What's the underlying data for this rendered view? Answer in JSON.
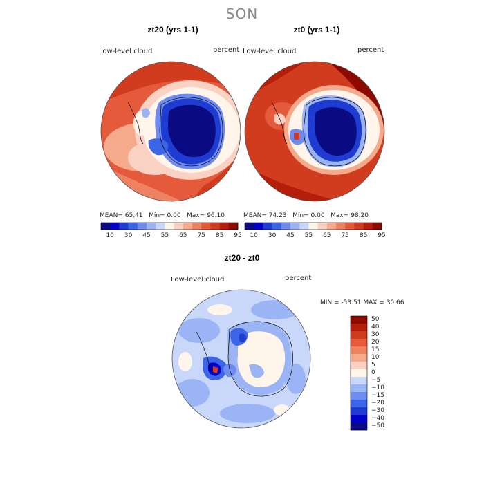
{
  "season": "SON",
  "panels": [
    {
      "title": "zt20 (yrs 1-1)",
      "variable": "Low-level cloud",
      "units": "percent",
      "stats": {
        "mean_label": "MEAN=",
        "mean": "65.41",
        "min_label": "Min=",
        "min": "0.00",
        "max_label": "Max=",
        "max": "96.10"
      }
    },
    {
      "title": "zt0 (yrs 1-1)",
      "variable": "Low-level cloud",
      "units": "percent",
      "stats": {
        "mean_label": "MEAN=",
        "mean": "74.23",
        "min_label": "Min=",
        "min": "0.00",
        "max_label": "Max=",
        "max": "98.20"
      }
    }
  ],
  "abs_colorbar": {
    "ticks": [
      "10",
      "30",
      "45",
      "55",
      "65",
      "75",
      "85",
      "95"
    ],
    "colors": [
      "#0a0a82",
      "#0000c8",
      "#1e3cd2",
      "#3c64e6",
      "#6e8cf0",
      "#9bb4f5",
      "#c8d7fa",
      "#fff5eb",
      "#fad2c3",
      "#f5aa8c",
      "#f08264",
      "#e65a3c",
      "#d23c1e",
      "#b41e0a",
      "#8c0a00"
    ]
  },
  "diff": {
    "title": "zt20 - zt0",
    "variable": "Low-level cloud",
    "units": "percent",
    "stats": {
      "min_label": "MIN =",
      "min": "-53.51",
      "max_label": "MAX =",
      "max": "30.66"
    },
    "colorbar": {
      "ticks": [
        "50",
        "40",
        "30",
        "20",
        "15",
        "10",
        "5",
        "0",
        "−5",
        "−10",
        "−15",
        "−20",
        "−30",
        "−40",
        "−50"
      ],
      "colors": [
        "#8c0a00",
        "#b41e0a",
        "#d23c1e",
        "#e65a3c",
        "#f08264",
        "#f5aa8c",
        "#fad2c3",
        "#fff5eb",
        "#c8d7fa",
        "#9bb4f5",
        "#6e8cf0",
        "#3c64e6",
        "#1e3cd2",
        "#0000c8",
        "#0a0a82"
      ]
    }
  }
}
